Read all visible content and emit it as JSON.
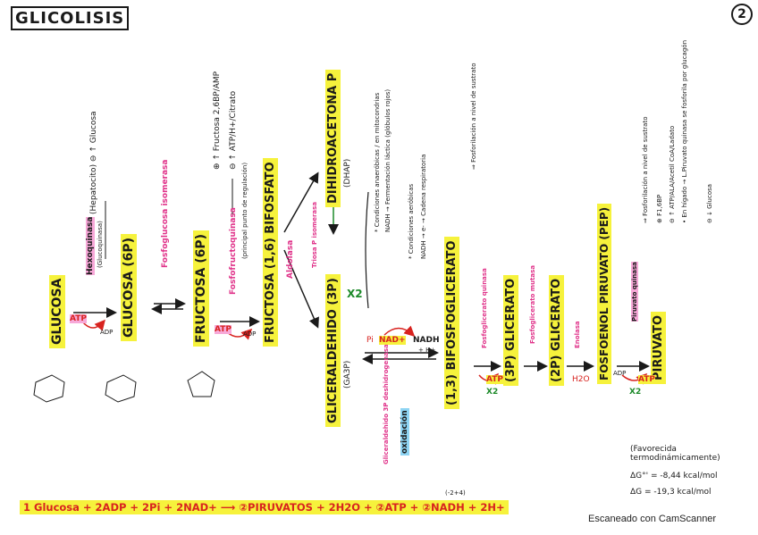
{
  "title": "GLICOLISIS",
  "page_number": "2",
  "watermark": "Escaneado con CamScanner",
  "metabolites": {
    "glucosa": "GLUCOSA",
    "glucosa6p": "GLUCOSA (6P)",
    "fructosa6p": "FRUCTOSA (6P)",
    "fructosa16bp": "FRUCTOSA (1,6) BIFOSFATO",
    "dhap": "DIHIDROACETONA P",
    "dhap_abbr": "(DHAP)",
    "ga3p": "GLICERALDEHIDO (3P)",
    "ga3p_abbr": "(GA3P)",
    "bpg13": "(1,3) BIFOSFOGLICERATO",
    "pg3": "(3P) GLICERATO",
    "pg2": "(2P) GLICERATO",
    "pep": "FOSFOENOL PIRUVATO (PEP)",
    "piruvato": "PIRUVATO"
  },
  "enzymes": {
    "hexoquinasa": "Hexoquinasa",
    "glucoquinasa": "(Glucoquinasa)",
    "fosfoglucosa_isomerasa": "Fosfoglucosa isomerasa",
    "fosfofructoquinasa": "Fosfofructoquinasa",
    "aldolasa": "Aldolasa",
    "triosa_isomerasa": "Triosa P isomerasa",
    "ga3p_dh": "Gliceraldehido 3P deshidrogenasa",
    "fosfoglicerato_quinasa": "Fosfoglicerato quinasa",
    "fosfoglicerato_mutasa": "Fosfoglicerato mutasa",
    "enolasa": "Enolasa",
    "piruvato_quinasa": "Piruvato quinasa"
  },
  "regulation": {
    "hexoquinasa": "(Hepatocito) ⊖ ↑ Glucosa",
    "pfk_pos": "⊕ ↑ Fructosa 2,6BP/AMP",
    "pfk_neg": "⊖ ↑ ATP/H+/Citrato",
    "pfk_note": "(principal punto de regulación)",
    "pk_pos": "⊕ F1,6BP",
    "pk_neg": "⊖ ↑ ATP/ALA/Acetil CoA/Ladato",
    "pk_liver": "• En hígado → L.Piruvato quinasa se fosforila por glucagón",
    "pk_glucosa": "⊖ ↓ Glucosa",
    "fosforilacion_pk": "⇒ Fosforilación a nivel de sustrato",
    "fosforilacion_pgk": "⇒ Fosforilación a nivel de sustrato"
  },
  "conditions": {
    "anaerobicas": "* Condiciones anaeróbicas / en mitocondrias",
    "anaerobicas_2": "NADH → Fermentación láctica (glóbulos rojos)",
    "aerobicas": "* Condiciones aeróbicas",
    "aerobicas_2": "NADH → e- → Cadena respiratoria"
  },
  "cofactors": {
    "atp": "ATP",
    "adp": "ADP",
    "pi": "Pi",
    "nad": "NAD+",
    "nadh": "NADH",
    "h": "+ H+",
    "h2o": "H2O",
    "x2": "X2",
    "oxidacion": "oxidación"
  },
  "thermo": {
    "note": "(Favorecida termodinámicamente)",
    "dg0": "ΔG°' = -8,44 kcal/mol",
    "dg": "ΔG = -19,3 kcal/mol"
  },
  "equation": {
    "text": "1 Glucosa + 2ADP + 2Pi + 2NAD+ ⟶ ②PIRUVATOS + 2H2O + ②ATP + ②NADH + 2H+",
    "atp_note": "(-2+4)"
  },
  "colors": {
    "yellow": "#f6f23c",
    "pink": "#f7a8d8",
    "red": "#d8231f",
    "green": "#1d8a2a",
    "blue": "#8ed4f3"
  }
}
